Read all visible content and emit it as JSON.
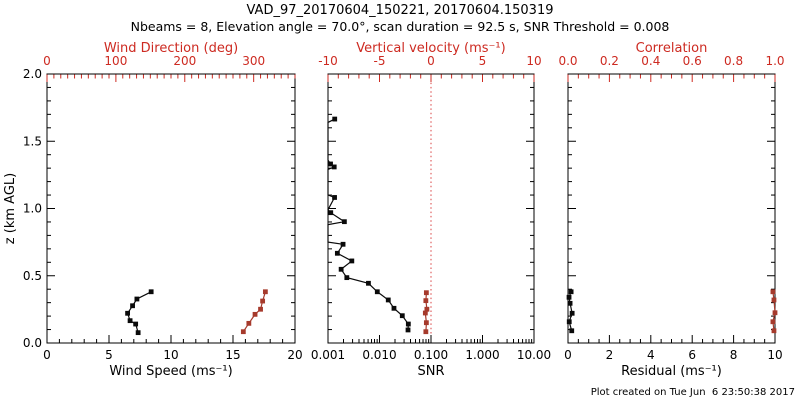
{
  "header": {
    "title": "VAD_97_20170604_150221, 20170604.150319",
    "subtitle": "Nbeams = 8, Elevation angle = 70.0°, scan duration = 92.5 s, SNR Threshold = 0.008"
  },
  "footer": {
    "created": "Plot created on Tue Jun  6 23:50:38 2017"
  },
  "colors": {
    "frame": "#000000",
    "red_axis": "#cd2a21",
    "black_series": "#0a0a0a",
    "red_series": "#a63a2c",
    "zero_line": "#d94040",
    "background": "#ffffff"
  },
  "y_axis": {
    "label": "z (km AGL)",
    "range": [
      0,
      2
    ],
    "tick_values": [
      0.0,
      0.5,
      1.0,
      1.5,
      2.0
    ],
    "tick_labels": [
      "0.0",
      "0.5",
      "1.0",
      "1.5",
      "2.0"
    ],
    "minor_step": 0.1
  },
  "chart_data": [
    {
      "id": "wind",
      "type": "line",
      "bottom_axis": {
        "label": "Wind Speed (ms⁻¹)",
        "scale": "linear",
        "range": [
          0,
          20
        ],
        "tick_values": [
          0,
          5,
          10,
          15,
          20
        ],
        "tick_labels": [
          "0",
          "5",
          "10",
          "15",
          "20"
        ],
        "minor_step": 1,
        "color": "black"
      },
      "top_axis": {
        "label": "Wind Direction (deg)",
        "scale": "linear",
        "range": [
          0,
          360
        ],
        "tick_values": [
          0,
          100,
          200,
          300
        ],
        "tick_labels": [
          "0",
          "100",
          "200",
          "300"
        ],
        "minor_step": 10,
        "color": "red"
      },
      "series": [
        {
          "name": "wind-speed",
          "axis": "bottom",
          "color": "black",
          "points": [
            [
              0.077,
              7.35
            ],
            [
              0.141,
              7.15
            ],
            [
              0.166,
              6.7
            ],
            [
              0.221,
              6.5
            ],
            [
              0.277,
              6.9
            ],
            [
              0.327,
              7.25
            ],
            [
              0.381,
              8.4
            ]
          ]
        },
        {
          "name": "wind-direction",
          "axis": "top",
          "color": "red",
          "points": [
            [
              0.084,
              285
            ],
            [
              0.146,
              293
            ],
            [
              0.213,
              302
            ],
            [
              0.251,
              310
            ],
            [
              0.312,
              313
            ],
            [
              0.381,
              317
            ]
          ]
        }
      ]
    },
    {
      "id": "snr",
      "type": "line",
      "bottom_axis": {
        "label": "SNR",
        "scale": "log",
        "range": [
          0.001,
          10
        ],
        "tick_values": [
          0.001,
          0.01,
          0.1,
          1,
          10
        ],
        "tick_labels": [
          "0.001",
          "0.010",
          "0.100",
          "1.000",
          "10.00"
        ],
        "color": "black"
      },
      "top_axis": {
        "label": "Vertical velocity (ms⁻¹)",
        "scale": "linear",
        "range": [
          -10,
          10
        ],
        "tick_values": [
          -10,
          -5,
          0,
          5,
          10
        ],
        "tick_labels": [
          "-10",
          "-5",
          "0",
          "5",
          "10"
        ],
        "minor_step": 1,
        "color": "red",
        "zero_line": true
      },
      "series": [
        {
          "name": "snr-profile",
          "axis": "bottom",
          "color": "black",
          "points": [
            [
              1.665,
              0.00135
            ],
            [
              1.64,
              0.001,
              "clip"
            ],
            [
              1.36,
              0.001,
              "clip"
            ],
            [
              1.331,
              0.00112
            ],
            [
              1.309,
              0.00132
            ],
            [
              1.29,
              0.001,
              "clip"
            ],
            [
              1.1,
              0.001,
              "clip"
            ],
            [
              1.082,
              0.00134
            ],
            [
              0.99,
              0.001,
              "clip"
            ],
            [
              0.969,
              0.00113
            ],
            [
              0.902,
              0.00208
            ],
            [
              0.88,
              0.001,
              "clip"
            ],
            [
              0.75,
              0.001,
              "clip"
            ],
            [
              0.734,
              0.00196
            ],
            [
              0.667,
              0.00152
            ],
            [
              0.61,
              0.0029
            ],
            [
              0.548,
              0.0018
            ],
            [
              0.486,
              0.00232
            ],
            [
              0.444,
              0.0061
            ],
            [
              0.381,
              0.00906
            ],
            [
              0.32,
              0.0148
            ],
            [
              0.258,
              0.0191
            ],
            [
              0.203,
              0.0277
            ],
            [
              0.141,
              0.0363
            ],
            [
              0.097,
              0.0358
            ]
          ]
        },
        {
          "name": "vertical-velocity",
          "axis": "top",
          "color": "red",
          "points": [
            [
              0.084,
              -0.5
            ],
            [
              0.151,
              -0.45
            ],
            [
              0.223,
              -0.55
            ],
            [
              0.251,
              -0.4
            ],
            [
              0.315,
              -0.5
            ],
            [
              0.374,
              -0.45
            ]
          ]
        }
      ]
    },
    {
      "id": "residual",
      "type": "line",
      "bottom_axis": {
        "label": "Residual (ms⁻¹)",
        "scale": "linear",
        "range": [
          0,
          10
        ],
        "tick_values": [
          0,
          2,
          4,
          6,
          8,
          10
        ],
        "tick_labels": [
          "0",
          "2",
          "4",
          "6",
          "8",
          "10"
        ],
        "minor_step": 0.5,
        "color": "black"
      },
      "top_axis": {
        "label": "Correlation",
        "scale": "linear",
        "range": [
          0,
          1
        ],
        "tick_values": [
          0.0,
          0.2,
          0.4,
          0.6,
          0.8,
          1.0
        ],
        "tick_labels": [
          "0.0",
          "0.2",
          "0.4",
          "0.6",
          "0.8",
          "1.0"
        ],
        "minor_step": 0.05,
        "color": "red"
      },
      "series": [
        {
          "name": "residual",
          "axis": "bottom",
          "color": "black",
          "points": [
            [
              0.091,
              0.18
            ],
            [
              0.158,
              0.06
            ],
            [
              0.221,
              0.2
            ],
            [
              0.295,
              0.1
            ],
            [
              0.34,
              0.05
            ],
            [
              0.381,
              0.15
            ]
          ]
        },
        {
          "name": "correlation",
          "axis": "top",
          "color": "red",
          "points": [
            [
              0.091,
              0.995
            ],
            [
              0.158,
              0.99
            ],
            [
              0.225,
              1.0
            ],
            [
              0.32,
              0.995
            ],
            [
              0.381,
              0.99
            ]
          ]
        }
      ]
    }
  ]
}
